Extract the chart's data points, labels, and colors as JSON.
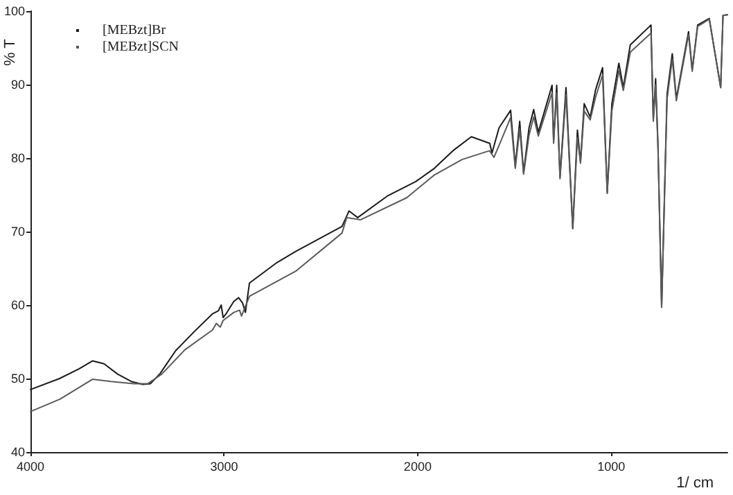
{
  "chart_data": {
    "type": "line",
    "xlabel": "1/ cm",
    "ylabel": "% T",
    "xlim": [
      4000,
      400
    ],
    "xticks": [
      4000,
      3000,
      2000,
      1000
    ],
    "ylim": [
      40,
      100
    ],
    "yticks": [
      40,
      50,
      60,
      70,
      80,
      90,
      100
    ],
    "grid": false,
    "legend": "top left",
    "marker": "none",
    "line_style": "solid",
    "series": [
      {
        "name": "[MEBzt]Br",
        "color": "#1a1a1a",
        "x": [
          4000,
          3850,
          3750,
          3680,
          3620,
          3550,
          3480,
          3420,
          3380,
          3330,
          3250,
          3150,
          3060,
          3030,
          3015,
          3005,
          2990,
          2950,
          2925,
          2905,
          2890,
          2869,
          2726,
          2630,
          2391,
          2355,
          2310,
          2153,
          2010,
          1914,
          1818,
          1723,
          1628,
          1616,
          1580,
          1520,
          1496,
          1473,
          1453,
          1425,
          1401,
          1377,
          1306,
          1298,
          1282,
          1265,
          1234,
          1199,
          1175,
          1159,
          1140,
          1109,
          1081,
          1045,
          1021,
          997,
          961,
          938,
          902,
          795,
          783,
          771,
          759,
          740,
          712,
          685,
          664,
          601,
          582,
          554,
          494,
          435,
          423,
          400
        ],
        "values": [
          48.5,
          50.0,
          51.3,
          52.4,
          52.0,
          50.6,
          49.6,
          49.2,
          49.3,
          50.7,
          53.8,
          56.5,
          58.8,
          59.2,
          60.0,
          58.3,
          58.8,
          60.5,
          61.0,
          60.3,
          59.0,
          63.0,
          65.8,
          67.3,
          70.7,
          72.8,
          71.9,
          74.9,
          76.8,
          78.6,
          81.0,
          82.9,
          82.0,
          80.7,
          84.1,
          86.5,
          78.9,
          85.0,
          78.0,
          84.1,
          86.6,
          83.5,
          89.9,
          82.3,
          89.9,
          77.4,
          89.6,
          70.4,
          83.8,
          79.5,
          87.4,
          85.6,
          89.3,
          92.3,
          75.3,
          87.4,
          92.9,
          89.6,
          95.4,
          98.1,
          85.3,
          90.8,
          81.9,
          59.7,
          88.7,
          94.2,
          88.1,
          97.2,
          92.0,
          98.1,
          99.0,
          89.6,
          99.4,
          99.5
        ]
      },
      {
        "name": "[MEBzt]SCN",
        "color": "#5a5a5a",
        "x": [
          4000,
          3847,
          3680,
          3585,
          3466,
          3394,
          3322,
          3203,
          3060,
          3040,
          3020,
          3005,
          2950,
          2920,
          2910,
          2869,
          2630,
          2391,
          2367,
          2296,
          2057,
          1914,
          1771,
          1629,
          1606,
          1580,
          1520,
          1496,
          1473,
          1453,
          1425,
          1401,
          1377,
          1306,
          1298,
          1282,
          1265,
          1234,
          1199,
          1175,
          1159,
          1140,
          1109,
          1081,
          1045,
          1021,
          997,
          961,
          938,
          902,
          795,
          783,
          771,
          759,
          740,
          712,
          685,
          664,
          601,
          582,
          554,
          494,
          435,
          423,
          400
        ],
        "values": [
          45.5,
          47.2,
          49.9,
          49.6,
          49.3,
          49.3,
          50.6,
          53.9,
          56.6,
          57.5,
          57.0,
          57.9,
          59.0,
          59.3,
          58.5,
          61.2,
          64.6,
          69.8,
          71.9,
          71.6,
          74.6,
          77.7,
          79.8,
          81.0,
          80.1,
          81.7,
          85.5,
          78.6,
          84.0,
          77.8,
          83.1,
          85.6,
          83.0,
          88.9,
          82.0,
          88.9,
          77.2,
          88.6,
          70.4,
          82.8,
          79.3,
          86.4,
          85.2,
          88.3,
          91.3,
          75.2,
          86.4,
          91.9,
          89.2,
          94.4,
          97.0,
          85.0,
          90.0,
          81.6,
          59.7,
          88.0,
          93.5,
          87.8,
          96.8,
          91.8,
          97.9,
          98.9,
          89.6,
          99.4,
          99.5
        ]
      }
    ]
  }
}
